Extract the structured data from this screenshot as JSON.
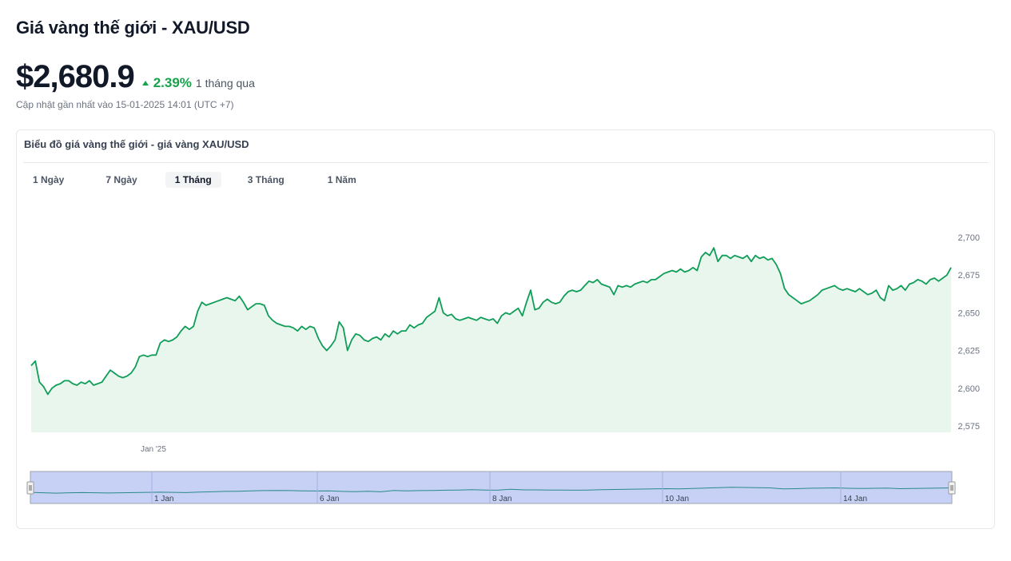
{
  "header": {
    "title": "Giá vàng thế giới - XAU/USD",
    "price": "$2,680.9",
    "change": "2.39%",
    "period": "1 tháng qua",
    "updated": "Cập nhật gần nhất vào 15-01-2025 14:01 (UTC +7)"
  },
  "card": {
    "title": "Biểu đồ giá vàng thế giới - giá vàng XAU/USD",
    "tabs": [
      {
        "label": "1 Ngày",
        "active": false
      },
      {
        "label": "7 Ngày",
        "active": false
      },
      {
        "label": "1 Tháng",
        "active": true
      },
      {
        "label": "3 Tháng",
        "active": false
      },
      {
        "label": "1 Năm",
        "active": false
      }
    ]
  },
  "colors": {
    "line": "#0f9d58",
    "fill": "#e9f6ee",
    "up": "#16a34a",
    "navigator_bg": "#c7d0f5",
    "navigator_line": "#2a8a8a"
  },
  "chart_data": {
    "type": "area",
    "title": "",
    "xlabel": "",
    "ylabel": "",
    "ylim": [
      2575,
      2710
    ],
    "yticks": [
      2575,
      2600,
      2625,
      2650,
      2675,
      2700
    ],
    "ytick_labels": [
      "2,575",
      "2,600",
      "2,625",
      "2,650",
      "2,675",
      "2,700"
    ],
    "xtick_labels": [
      {
        "label": "Jan '25",
        "index": 36
      }
    ],
    "navigator_labels": [
      {
        "label": "1 Jan",
        "index": 36
      },
      {
        "label": "6 Jan",
        "index": 86
      },
      {
        "label": "8 Jan",
        "index": 136
      },
      {
        "label": "10 Jan",
        "index": 186
      },
      {
        "label": "14 Jan",
        "index": 236
      }
    ],
    "grid": false,
    "legend": "none",
    "values": [
      2615,
      2618,
      2604,
      2601,
      2596,
      2600,
      2602,
      2603,
      2605,
      2605,
      2603,
      2602,
      2604,
      2603,
      2605,
      2602,
      2603,
      2604,
      2608,
      2612,
      2610,
      2608,
      2607,
      2608,
      2610,
      2614,
      2621,
      2622,
      2621,
      2622,
      2622,
      2630,
      2632,
      2631,
      2632,
      2634,
      2638,
      2641,
      2639,
      2641,
      2651,
      2657,
      2655,
      2656,
      2657,
      2658,
      2659,
      2660,
      2659,
      2658,
      2661,
      2657,
      2652,
      2654,
      2656,
      2656,
      2655,
      2648,
      2645,
      2643,
      2642,
      2641,
      2641,
      2640,
      2638,
      2641,
      2639,
      2641,
      2640,
      2633,
      2628,
      2625,
      2628,
      2632,
      2644,
      2640,
      2625,
      2632,
      2636,
      2635,
      2632,
      2631,
      2633,
      2634,
      2632,
      2636,
      2634,
      2638,
      2636,
      2638,
      2638,
      2642,
      2640,
      2642,
      2643,
      2647,
      2649,
      2651,
      2660,
      2650,
      2648,
      2649,
      2646,
      2645,
      2646,
      2647,
      2646,
      2645,
      2647,
      2646,
      2645,
      2646,
      2643,
      2648,
      2650,
      2649,
      2651,
      2653,
      2648,
      2657,
      2665,
      2652,
      2653,
      2657,
      2659,
      2657,
      2656,
      2657,
      2661,
      2664,
      2665,
      2664,
      2665,
      2668,
      2671,
      2670,
      2672,
      2669,
      2668,
      2667,
      2662,
      2668,
      2667,
      2668,
      2667,
      2669,
      2670,
      2671,
      2670,
      2672,
      2672,
      2674,
      2676,
      2677,
      2678,
      2677,
      2679,
      2677,
      2678,
      2680,
      2678,
      2687,
      2690,
      2688,
      2693,
      2684,
      2688,
      2688,
      2686,
      2688,
      2687,
      2686,
      2688,
      2684,
      2688,
      2686,
      2687,
      2685,
      2686,
      2682,
      2676,
      2666,
      2662,
      2660,
      2658,
      2656,
      2657,
      2658,
      2660,
      2662,
      2665,
      2666,
      2667,
      2668,
      2666,
      2665,
      2666,
      2665,
      2664,
      2666,
      2664,
      2662,
      2663,
      2665,
      2660,
      2658,
      2668,
      2665,
      2666,
      2668,
      2665,
      2669,
      2670,
      2672,
      2671,
      2669,
      2672,
      2673,
      2671,
      2673,
      2675,
      2680
    ],
    "navigator_values": [
      2622,
      2620,
      2618,
      2620,
      2621,
      2620,
      2619,
      2620,
      2621,
      2622,
      2623,
      2622,
      2621,
      2624,
      2625,
      2627,
      2628,
      2630,
      2631,
      2632,
      2631,
      2630,
      2629,
      2630,
      2627,
      2626,
      2628,
      2625,
      2632,
      2630,
      2631,
      2632,
      2633,
      2634,
      2636,
      2634,
      2633,
      2638,
      2635,
      2635,
      2634,
      2634,
      2633,
      2634,
      2636,
      2637,
      2638,
      2639,
      2640,
      2641,
      2640,
      2642,
      2644,
      2646,
      2648,
      2647,
      2646,
      2645,
      2640,
      2641,
      2643,
      2644,
      2645,
      2643,
      2642,
      2643,
      2644,
      2641,
      2642,
      2643,
      2644,
      2645
    ]
  }
}
